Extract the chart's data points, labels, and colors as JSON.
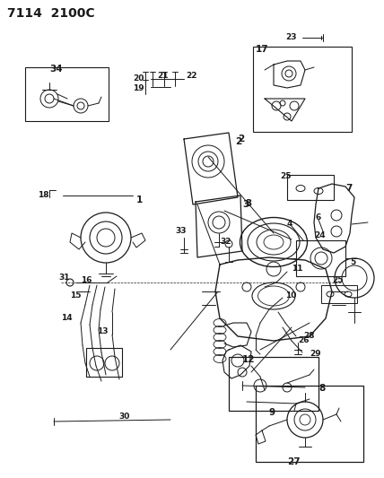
{
  "title": "7114  2100C",
  "bg_color": "#ffffff",
  "line_color": "#1a1a1a",
  "title_fontsize": 10,
  "label_fontsize": 6.5,
  "fig_width": 4.28,
  "fig_height": 5.33,
  "dpi": 100
}
